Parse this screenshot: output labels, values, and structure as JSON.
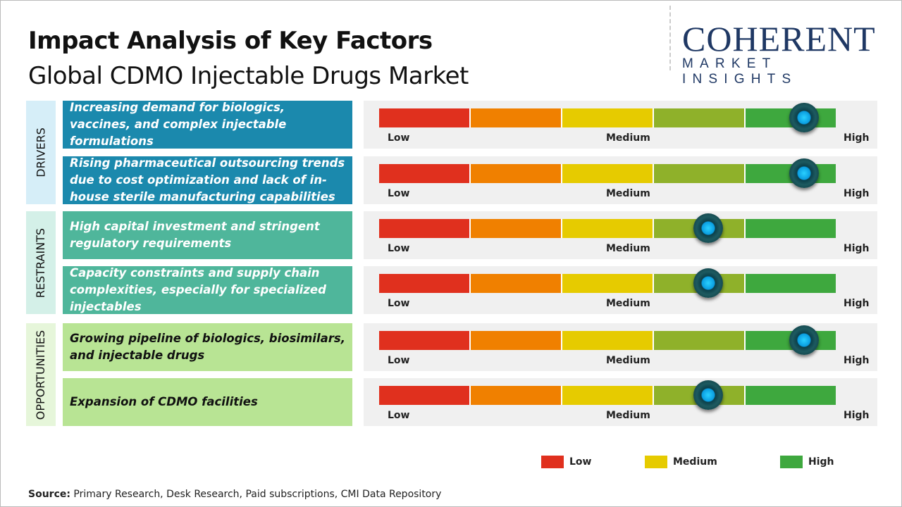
{
  "header": {
    "title": "Impact Analysis of Key Factors",
    "subtitle": "Global CDMO Injectable Drugs Market"
  },
  "logo": {
    "line1": "COHERENT",
    "line2": "MARKET INSIGHTS"
  },
  "colors": {
    "drivers": "#1b89ad",
    "restraints": "#4fb69b",
    "opportunities": "#b8e494",
    "low": "#e0301e",
    "low_medium": "#f08000",
    "medium": "#e6cb00",
    "medium_high": "#8fb12a",
    "high": "#3ea83e"
  },
  "chart_data": {
    "type": "gauge",
    "scale_labels": [
      "Low",
      "Medium",
      "High"
    ],
    "categories": [
      {
        "name": "DRIVERS",
        "factors": [
          {
            "text": "Increasing demand for biologics, vaccines, and complex injectable formulations",
            "impact": 0.93
          },
          {
            "text": "Rising pharmaceutical outsourcing trends due to cost optimization and lack of in-house sterile manufacturing capabilities",
            "impact": 0.93
          }
        ]
      },
      {
        "name": "RESTRAINTS",
        "factors": [
          {
            "text": "High capital investment and stringent regulatory requirements",
            "impact": 0.72
          },
          {
            "text": "Capacity constraints and supply chain complexities, especially for specialized injectables",
            "impact": 0.72
          }
        ]
      },
      {
        "name": "OPPORTUNITIES",
        "factors": [
          {
            "text": "Growing pipeline of biologics, biosimilars, and injectable drugs",
            "impact": 0.93
          },
          {
            "text": "Expansion of CDMO facilities",
            "impact": 0.72
          }
        ]
      }
    ],
    "legend": [
      "Low",
      "Medium",
      "High"
    ]
  },
  "source": {
    "label": "Source:",
    "text": " Primary Research, Desk Research, Paid subscriptions, CMI Data Repository"
  }
}
